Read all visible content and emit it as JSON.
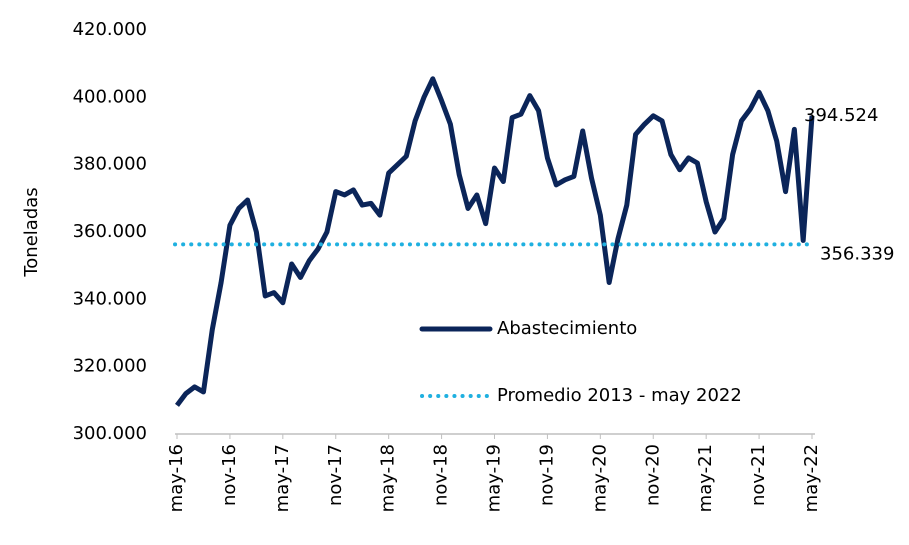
{
  "chart_data": {
    "type": "line",
    "y_label": "Toneladas",
    "categories": [
      "may-16",
      null,
      null,
      null,
      null,
      null,
      "nov-16",
      null,
      null,
      null,
      null,
      null,
      "may-17",
      null,
      null,
      null,
      null,
      null,
      "nov-17",
      null,
      null,
      null,
      null,
      null,
      "may-18",
      null,
      null,
      null,
      null,
      null,
      "nov-18",
      null,
      null,
      null,
      null,
      null,
      "may-19",
      null,
      null,
      null,
      null,
      null,
      "nov-19",
      null,
      null,
      null,
      null,
      null,
      "may-20",
      null,
      null,
      null,
      null,
      null,
      "nov-20",
      null,
      null,
      null,
      null,
      null,
      "may-21",
      null,
      null,
      null,
      null,
      null,
      "nov-21",
      null,
      null,
      null,
      null,
      null,
      "may-22"
    ],
    "series": [
      {
        "name": "Abastecimiento",
        "color": "#0b2559",
        "values": [
          308500,
          312000,
          314000,
          312500,
          331000,
          345000,
          362000,
          367000,
          369500,
          360000,
          341000,
          342000,
          339000,
          350500,
          346500,
          351500,
          355000,
          360000,
          372000,
          371000,
          372500,
          368000,
          368500,
          365000,
          377500,
          380000,
          382500,
          393000,
          400000,
          405500,
          399000,
          392000,
          377000,
          367000,
          371000,
          362500,
          379000,
          375000,
          394000,
          395000,
          400500,
          396000,
          382000,
          374000,
          375500,
          376500,
          390000,
          376000,
          365000,
          345000,
          358000,
          368000,
          389000,
          392000,
          394500,
          393000,
          383000,
          378500,
          382000,
          380500,
          369000,
          360000,
          364000,
          383000,
          393000,
          396500,
          401500,
          396000,
          387000,
          372000,
          390500,
          357500,
          394524
        ],
        "value_labels": [
          null,
          null,
          null,
          null,
          null,
          null,
          null,
          null,
          null,
          null,
          null,
          null,
          null,
          null,
          null,
          null,
          null,
          null,
          null,
          null,
          null,
          null,
          null,
          null,
          null,
          null,
          null,
          null,
          null,
          null,
          null,
          null,
          null,
          null,
          null,
          null,
          null,
          null,
          null,
          null,
          null,
          null,
          null,
          null,
          null,
          null,
          null,
          null,
          null,
          null,
          null,
          null,
          null,
          null,
          null,
          null,
          null,
          null,
          null,
          null,
          null,
          null,
          null,
          null,
          null,
          null,
          null,
          null,
          null,
          null,
          null,
          null,
          "394.524"
        ]
      },
      {
        "name": "Promedio 2013 - may 2022",
        "color": "#1fb0e0",
        "style": "dotted",
        "value": 356339,
        "value_label": "356.339"
      }
    ],
    "ylim": [
      300000,
      420000
    ],
    "yticks": [
      {
        "value": 300000,
        "label": "300.000"
      },
      {
        "value": 320000,
        "label": "320.000"
      },
      {
        "value": 340000,
        "label": "340.000"
      },
      {
        "value": 360000,
        "label": "360.000"
      },
      {
        "value": 380000,
        "label": "380.000"
      },
      {
        "value": 400000,
        "label": "400.000"
      },
      {
        "value": 420000,
        "label": "420.000"
      }
    ],
    "grid": false
  }
}
